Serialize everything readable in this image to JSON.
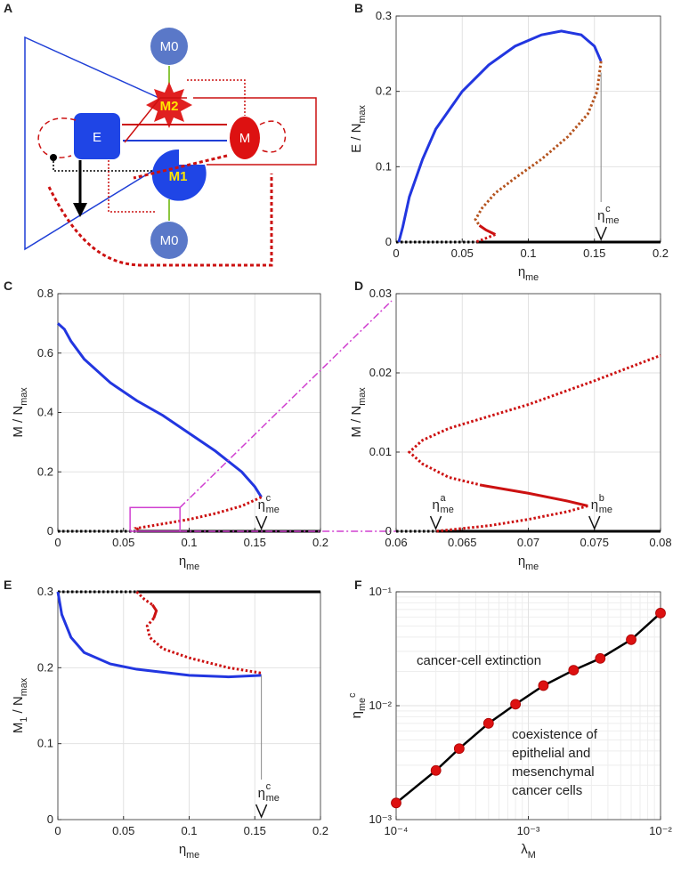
{
  "diagram": {
    "panel_label": "A",
    "nodes": [
      {
        "label": "M0"
      },
      {
        "label": "M2"
      },
      {
        "label": "E"
      },
      {
        "label": "M"
      },
      {
        "label": "M1"
      },
      {
        "label": "M0"
      }
    ]
  },
  "chart_data": [
    {
      "type": "line",
      "panel_label": "B",
      "grid": true,
      "xlim": [
        0,
        0.2
      ],
      "ylim": [
        0,
        0.3
      ],
      "xticks": [
        0,
        0.05,
        0.1,
        0.15,
        0.2
      ],
      "yticks": [
        0,
        0.1,
        0.2,
        0.3
      ],
      "x_label": [
        {
          "text": "η"
        },
        {
          "sub": "me"
        }
      ],
      "y_label": [
        {
          "text": "E / N"
        },
        {
          "sub": "max"
        }
      ],
      "series": [
        {
          "color": "#000000",
          "style": "dotted",
          "x": [
            0,
            0.062
          ],
          "values": [
            0,
            0
          ]
        },
        {
          "color": "#000000",
          "style": "solid",
          "x": [
            0.062,
            0.2
          ],
          "values": [
            0,
            0
          ]
        },
        {
          "color": "#2236e0",
          "style": "solid",
          "x": [
            0.002,
            0.005,
            0.01,
            0.02,
            0.03,
            0.05,
            0.07,
            0.09,
            0.11,
            0.125,
            0.14,
            0.15,
            0.155
          ],
          "values": [
            0,
            0.02,
            0.06,
            0.11,
            0.15,
            0.2,
            0.235,
            0.26,
            0.275,
            0.28,
            0.275,
            0.26,
            0.24
          ]
        },
        {
          "color": "#b5541f",
          "style": "dotted",
          "x": [
            0.155,
            0.152,
            0.145,
            0.13,
            0.11,
            0.09,
            0.075,
            0.065,
            0.06,
            0.063
          ],
          "values": [
            0.24,
            0.2,
            0.17,
            0.14,
            0.11,
            0.085,
            0.065,
            0.045,
            0.03,
            0.022
          ]
        },
        {
          "color": "#cc1111",
          "style": "solid",
          "x": [
            0.063,
            0.068,
            0.075
          ],
          "values": [
            0.022,
            0.016,
            0.01
          ]
        },
        {
          "color": "#cc1111",
          "style": "dotted",
          "x": [
            0.075,
            0.065,
            0.06
          ],
          "values": [
            0.01,
            0.003,
            0
          ]
        }
      ],
      "annotations": [
        {
          "base": "η",
          "sup": "c",
          "sub": "me",
          "x": 0.155,
          "y": 0.225
        }
      ]
    },
    {
      "type": "line",
      "panel_label": "C",
      "grid": true,
      "xlim": [
        0,
        0.2
      ],
      "ylim": [
        0,
        0.8
      ],
      "xticks": [
        0,
        0.05,
        0.1,
        0.15,
        0.2
      ],
      "yticks": [
        0,
        0.2,
        0.4,
        0.6,
        0.8
      ],
      "x_label": [
        {
          "text": "η"
        },
        {
          "sub": "me"
        }
      ],
      "y_label": [
        {
          "text": "M / N"
        },
        {
          "sub": "max"
        }
      ],
      "series": [
        {
          "color": "#000000",
          "style": "dotted",
          "x": [
            0,
            0.06
          ],
          "values": [
            0,
            0
          ]
        },
        {
          "color": "#000000",
          "style": "solid",
          "x": [
            0.06,
            0.2
          ],
          "values": [
            0,
            0
          ]
        },
        {
          "color": "#2236e0",
          "style": "solid",
          "x": [
            0,
            0.005,
            0.01,
            0.02,
            0.04,
            0.06,
            0.08,
            0.1,
            0.12,
            0.14,
            0.15,
            0.155
          ],
          "values": [
            0.7,
            0.68,
            0.64,
            0.58,
            0.5,
            0.44,
            0.39,
            0.33,
            0.27,
            0.2,
            0.15,
            0.115
          ]
        },
        {
          "color": "#cc1111",
          "style": "dotted",
          "x": [
            0.155,
            0.14,
            0.12,
            0.1,
            0.08,
            0.06,
            0.062
          ],
          "values": [
            0.115,
            0.085,
            0.06,
            0.04,
            0.025,
            0.01,
            0.003
          ]
        }
      ],
      "inset_box": {
        "x": [
          0.055,
          0.093
        ],
        "y": [
          0,
          0.08
        ]
      },
      "annotations": [
        {
          "base": "η",
          "sup": "c",
          "sub": "me",
          "x": 0.155
        }
      ]
    },
    {
      "type": "line",
      "panel_label": "D",
      "grid": true,
      "xlim": [
        0.06,
        0.08
      ],
      "ylim": [
        0,
        0.03
      ],
      "xticks": [
        0.06,
        0.065,
        0.07,
        0.075,
        0.08
      ],
      "yticks": [
        0,
        0.01,
        0.02,
        0.03
      ],
      "x_label": [
        {
          "text": "η"
        },
        {
          "sub": "me"
        }
      ],
      "y_label": [
        {
          "text": "M / N"
        },
        {
          "sub": "max"
        }
      ],
      "series": [
        {
          "color": "#000000",
          "style": "dotted",
          "x": [
            0.06,
            0.063
          ],
          "values": [
            0,
            0
          ]
        },
        {
          "color": "#000000",
          "style": "solid",
          "x": [
            0.063,
            0.08
          ],
          "values": [
            0,
            0
          ]
        },
        {
          "color": "#cc1111",
          "style": "dotted",
          "x": [
            0.0665,
            0.064,
            0.062,
            0.061,
            0.062,
            0.064,
            0.067,
            0.07,
            0.075,
            0.08
          ],
          "values": [
            0.0058,
            0.0068,
            0.0085,
            0.01,
            0.0115,
            0.013,
            0.0145,
            0.016,
            0.019,
            0.0222
          ]
        },
        {
          "color": "#cc1111",
          "style": "solid",
          "x": [
            0.0665,
            0.07,
            0.073,
            0.0745
          ],
          "values": [
            0.0058,
            0.0048,
            0.0038,
            0.0032
          ]
        },
        {
          "color": "#cc1111",
          "style": "dotted",
          "x": [
            0.0745,
            0.073,
            0.07,
            0.067,
            0.063
          ],
          "values": [
            0.0032,
            0.0025,
            0.0015,
            0.0007,
            0
          ]
        }
      ],
      "annotations": [
        {
          "base": "η",
          "sup": "a",
          "sub": "me",
          "x": 0.063
        },
        {
          "base": "η",
          "sup": "b",
          "sub": "me",
          "x": 0.075
        }
      ]
    },
    {
      "type": "line",
      "panel_label": "E",
      "grid": true,
      "xlim": [
        0,
        0.2
      ],
      "ylim": [
        0,
        0.3
      ],
      "xticks": [
        0,
        0.05,
        0.1,
        0.15,
        0.2
      ],
      "yticks": [
        0,
        0.1,
        0.2,
        0.3
      ],
      "x_label": [
        {
          "text": "η"
        },
        {
          "sub": "me"
        }
      ],
      "y_label": [
        {
          "text": "M"
        },
        {
          "sub": "1"
        },
        {
          "text": " / N"
        },
        {
          "sub": "max"
        }
      ],
      "series": [
        {
          "color": "#000000",
          "style": "dotted",
          "x": [
            0,
            0.06
          ],
          "values": [
            0.3,
            0.3
          ]
        },
        {
          "color": "#000000",
          "style": "solid",
          "x": [
            0.06,
            0.2
          ],
          "values": [
            0.3,
            0.3
          ]
        },
        {
          "color": "#2236e0",
          "style": "solid",
          "x": [
            0,
            0.003,
            0.01,
            0.02,
            0.04,
            0.06,
            0.1,
            0.13,
            0.155
          ],
          "values": [
            0.3,
            0.27,
            0.24,
            0.22,
            0.205,
            0.198,
            0.19,
            0.188,
            0.19
          ]
        },
        {
          "color": "#cc1111",
          "style": "dotted",
          "x": [
            0.06,
            0.066,
            0.072
          ],
          "values": [
            0.3,
            0.29,
            0.283
          ]
        },
        {
          "color": "#cc1111",
          "style": "solid",
          "x": [
            0.072,
            0.075,
            0.073
          ],
          "values": [
            0.283,
            0.275,
            0.265
          ]
        },
        {
          "color": "#cc1111",
          "style": "dotted",
          "x": [
            0.073,
            0.068,
            0.07,
            0.08,
            0.1,
            0.13,
            0.155
          ],
          "values": [
            0.265,
            0.255,
            0.24,
            0.225,
            0.213,
            0.2,
            0.193
          ]
        }
      ],
      "annotations": [
        {
          "base": "η",
          "sup": "c",
          "sub": "me",
          "x": 0.155,
          "y": 0.19
        }
      ]
    },
    {
      "type": "line",
      "panel_label": "F",
      "grid": true,
      "markers": true,
      "marker_color": "#dd1111",
      "xscale": "log",
      "yscale": "log",
      "xlim": [
        0.0001,
        0.01
      ],
      "ylim": [
        0.001,
        0.1
      ],
      "xticks": [
        {
          "value": 0.0001,
          "label": "10⁻⁴"
        },
        {
          "value": 0.001,
          "label": "10⁻³"
        },
        {
          "value": 0.01,
          "label": "10⁻²"
        }
      ],
      "yticks": [
        {
          "value": 0.001,
          "label": "10⁻³"
        },
        {
          "value": 0.01,
          "label": "10⁻²"
        },
        {
          "value": 0.1,
          "label": "10⁻¹"
        }
      ],
      "x_label": [
        {
          "text": "λ"
        },
        {
          "sub": "M"
        }
      ],
      "y_label": [
        {
          "text": "η"
        },
        {
          "sub": "me"
        },
        {
          "sup": "c"
        }
      ],
      "series": [
        {
          "color": "#000000",
          "style": "solid",
          "x": [
            0.0001,
            0.0002,
            0.0003,
            0.0005,
            0.0008,
            0.0013,
            0.0022,
            0.0035,
            0.006,
            0.01
          ],
          "values": [
            0.0014,
            0.0027,
            0.0042,
            0.007,
            0.0103,
            0.015,
            0.0205,
            0.026,
            0.038,
            0.065
          ]
        }
      ],
      "text_blocks": [
        {
          "lines": [
            "cancer-cell extinction"
          ]
        },
        {
          "lines": [
            "coexistence of",
            "epithelial and",
            "mesenchymal",
            "cancer cells"
          ]
        }
      ]
    }
  ]
}
